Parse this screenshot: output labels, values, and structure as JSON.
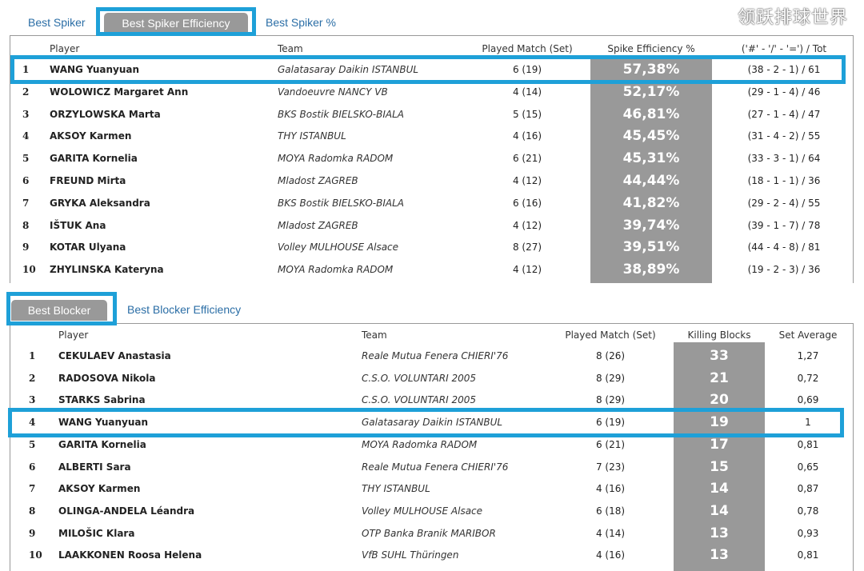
{
  "colors": {
    "highlight": "#1ea0d8",
    "active_tab": "#999999",
    "link": "#2b6ea6",
    "value_column": "#999999"
  },
  "spiker": {
    "tabs": [
      {
        "label": "Best Spiker",
        "active": false
      },
      {
        "label": "Best Spiker Efficiency",
        "active": true
      },
      {
        "label": "Best Spiker %",
        "active": false
      }
    ],
    "headers": {
      "player": "Player",
      "team": "Team",
      "played": "Played Match (Set)",
      "value": "Spike Efficiency %",
      "extra": "('#' - '/' - '=') / Tot"
    },
    "rows": [
      {
        "rank": "1",
        "player": "WANG Yuanyuan",
        "team": "Galatasaray Daikin ISTANBUL",
        "played": "6 (19)",
        "value": "57,38%",
        "extra": "(38 - 2 - 1) / 61",
        "highlighted": true
      },
      {
        "rank": "2",
        "player": "WOLOWICZ Margaret Ann",
        "team": "Vandoeuvre NANCY VB",
        "played": "4 (14)",
        "value": "52,17%",
        "extra": "(29 - 1 - 4) / 46"
      },
      {
        "rank": "3",
        "player": "ORZYLOWSKA Marta",
        "team": "BKS Bostik BIELSKO-BIALA",
        "played": "5 (15)",
        "value": "46,81%",
        "extra": "(27 - 1 - 4) / 47"
      },
      {
        "rank": "4",
        "player": "AKSOY Karmen",
        "team": "THY ISTANBUL",
        "played": "4 (16)",
        "value": "45,45%",
        "extra": "(31 - 4 - 2) / 55"
      },
      {
        "rank": "5",
        "player": "GARITA Kornelia",
        "team": "MOYA Radomka RADOM",
        "played": "6 (21)",
        "value": "45,31%",
        "extra": "(33 - 3 - 1) / 64"
      },
      {
        "rank": "6",
        "player": "FREUND Mirta",
        "team": "Mladost ZAGREB",
        "played": "4 (12)",
        "value": "44,44%",
        "extra": "(18 - 1 - 1) / 36"
      },
      {
        "rank": "7",
        "player": "GRYKA Aleksandra",
        "team": "BKS Bostik BIELSKO-BIALA",
        "played": "6 (16)",
        "value": "41,82%",
        "extra": "(29 - 2 - 4) / 55"
      },
      {
        "rank": "8",
        "player": "IŠTUK Ana",
        "team": "Mladost ZAGREB",
        "played": "4 (12)",
        "value": "39,74%",
        "extra": "(39 - 1 - 7) / 78"
      },
      {
        "rank": "9",
        "player": "KOTAR Ulyana",
        "team": "Volley MULHOUSE Alsace",
        "played": "8 (27)",
        "value": "39,51%",
        "extra": "(44 - 4 - 8) / 81"
      },
      {
        "rank": "10",
        "player": "ZHYLINSKA Kateryna",
        "team": "MOYA Radomka RADOM",
        "played": "4 (12)",
        "value": "38,89%",
        "extra": "(19 - 2 - 3) / 36"
      }
    ]
  },
  "blocker": {
    "tabs": [
      {
        "label": "Best Blocker",
        "active": true
      },
      {
        "label": "Best Blocker Efficiency",
        "active": false
      }
    ],
    "headers": {
      "player": "Player",
      "team": "Team",
      "played": "Played Match (Set)",
      "value": "Killing Blocks",
      "extra": "Set Average"
    },
    "rows": [
      {
        "rank": "1",
        "player": "CEKULAEV Anastasia",
        "team": "Reale Mutua Fenera CHIERI'76",
        "played": "8 (26)",
        "value": "33",
        "extra": "1,27"
      },
      {
        "rank": "2",
        "player": "RADOSOVA Nikola",
        "team": "C.S.O. VOLUNTARI 2005",
        "played": "8 (29)",
        "value": "21",
        "extra": "0,72"
      },
      {
        "rank": "3",
        "player": "STARKS Sabrina",
        "team": "C.S.O. VOLUNTARI 2005",
        "played": "8 (29)",
        "value": "20",
        "extra": "0,69"
      },
      {
        "rank": "4",
        "player": "WANG Yuanyuan",
        "team": "Galatasaray Daikin ISTANBUL",
        "played": "6 (19)",
        "value": "19",
        "extra": "1",
        "highlighted": true
      },
      {
        "rank": "5",
        "player": "GARITA Kornelia",
        "team": "MOYA Radomka RADOM",
        "played": "6 (21)",
        "value": "17",
        "extra": "0,81"
      },
      {
        "rank": "6",
        "player": "ALBERTI Sara",
        "team": "Reale Mutua Fenera CHIERI'76",
        "played": "7 (23)",
        "value": "15",
        "extra": "0,65"
      },
      {
        "rank": "7",
        "player": "AKSOY Karmen",
        "team": "THY ISTANBUL",
        "played": "4 (16)",
        "value": "14",
        "extra": "0,87"
      },
      {
        "rank": "8",
        "player": "OLINGA-ANDELA Léandra",
        "team": "Volley MULHOUSE Alsace",
        "played": "6 (18)",
        "value": "14",
        "extra": "0,78"
      },
      {
        "rank": "9",
        "player": "MILOŠIC Klara",
        "team": "OTP Banka Branik MARIBOR",
        "played": "4 (14)",
        "value": "13",
        "extra": "0,93"
      },
      {
        "rank": "10",
        "player": "LAAKKONEN Roosa Helena",
        "team": "VfB SUHL Thüringen",
        "played": "4 (16)",
        "value": "13",
        "extra": "0,81"
      }
    ]
  },
  "watermark": "领跃排球世界"
}
